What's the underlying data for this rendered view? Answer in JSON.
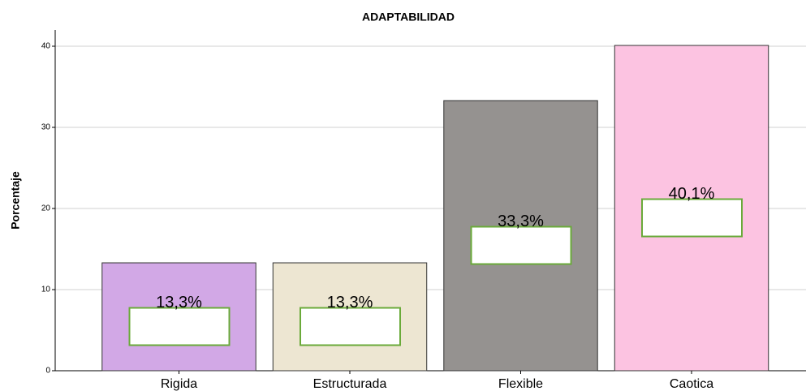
{
  "chart_data": {
    "type": "bar",
    "title": "ADAPTABILIDAD",
    "y_label": "Porcentaje",
    "categories": [
      "Rigida",
      "Estructurada",
      "Flexible",
      "Caotica"
    ],
    "values": [
      13.3,
      13.3,
      33.3,
      40.1
    ],
    "value_labels": [
      "13,3%",
      "13,3%",
      "33,3%",
      "40,1%"
    ],
    "colors": [
      "#d2a8e6",
      "#ede6d2",
      "#959290",
      "#fcc3e1"
    ],
    "ylim": [
      0,
      42
    ],
    "yticks": [
      0,
      10,
      20,
      30,
      40
    ],
    "grid": true
  }
}
